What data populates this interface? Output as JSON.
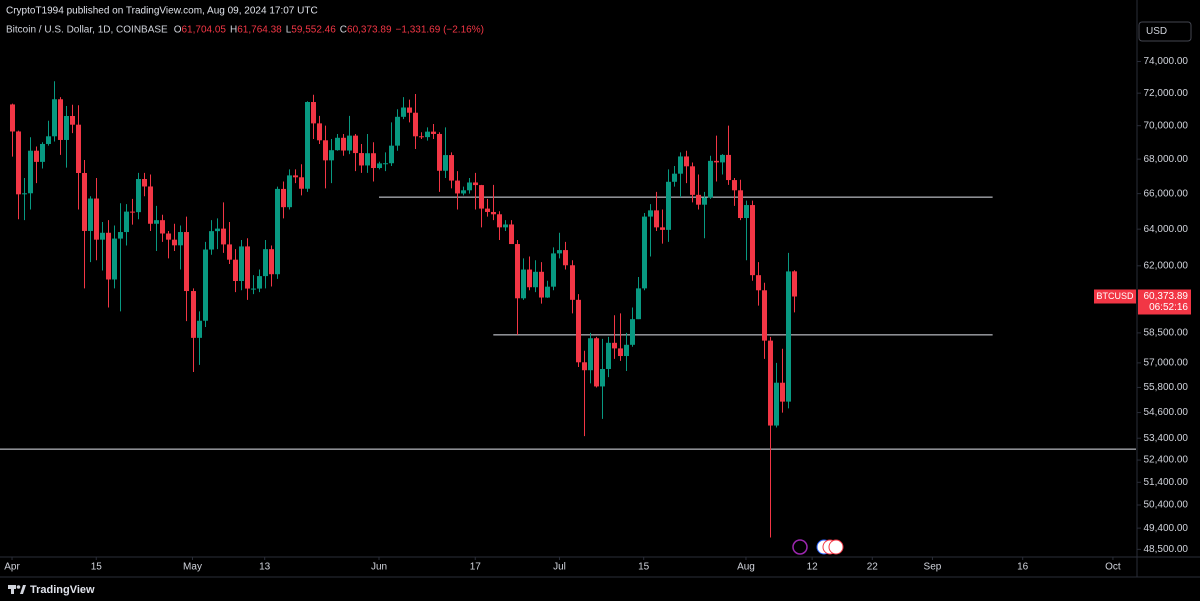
{
  "chart_data": {
    "type": "candlestick",
    "publisher_line": "CryptoT1994 published on TradingView.com, Aug 09, 2024 17:07 UTC",
    "symbol": "Bitcoin / U.S. Dollar, 1D, COINBASE",
    "ohlc_header": [
      {
        "key": "O",
        "label": "61,704.05"
      },
      {
        "key": "H",
        "label": "61,764.38"
      },
      {
        "key": "L",
        "label": "59,552.46"
      },
      {
        "key": "C",
        "label": "60,373.89"
      }
    ],
    "change_label": "−1,331.69 (−2.16%)",
    "currency": "USD",
    "price_tag": {
      "ticker": "BTCUSD",
      "price": "60,373.89",
      "countdown": "06:52:16"
    },
    "brand": "TradingView",
    "up_color": "#089981",
    "down_color": "#f23645",
    "log_scale": true,
    "xlim": [
      "2024-03-30",
      "2024-10-05"
    ],
    "ylim": [
      48180,
      78050
    ],
    "xticks": [
      {
        "value": "2024-04-01",
        "label": "Apr"
      },
      {
        "value": "2024-04-15",
        "label": "15"
      },
      {
        "value": "2024-05-01",
        "label": "May"
      },
      {
        "value": "2024-05-13",
        "label": "13"
      },
      {
        "value": "2024-06-01",
        "label": "Jun"
      },
      {
        "value": "2024-06-17",
        "label": "17"
      },
      {
        "value": "2024-07-01",
        "label": "Jul"
      },
      {
        "value": "2024-07-15",
        "label": "15"
      },
      {
        "value": "2024-08-01",
        "label": "Aug"
      },
      {
        "value": "2024-08-12",
        "label": "12"
      },
      {
        "value": "2024-08-22",
        "label": "22"
      },
      {
        "value": "2024-09-01",
        "label": "Sep"
      },
      {
        "value": "2024-09-16",
        "label": "16"
      },
      {
        "value": "2024-10-01",
        "label": "Oct"
      }
    ],
    "yticks": [
      {
        "value": 74000,
        "label": "74,000.00"
      },
      {
        "value": 72000,
        "label": "72,000.00"
      },
      {
        "value": 70000,
        "label": "70,000.00"
      },
      {
        "value": 68000,
        "label": "68,000.00"
      },
      {
        "value": 66000,
        "label": "66,000.00"
      },
      {
        "value": 64000,
        "label": "64,000.00"
      },
      {
        "value": 62000,
        "label": "62,000.00"
      },
      {
        "value": 58500,
        "label": "58,500.00"
      },
      {
        "value": 57000,
        "label": "57,000.00"
      },
      {
        "value": 55800,
        "label": "55,800.00"
      },
      {
        "value": 54600,
        "label": "54,600.00"
      },
      {
        "value": 53400,
        "label": "53,400.00"
      },
      {
        "value": 52400,
        "label": "52,400.00"
      },
      {
        "value": 51400,
        "label": "51,400.00"
      },
      {
        "value": 50400,
        "label": "50,400.00"
      },
      {
        "value": 49400,
        "label": "49,400.00"
      },
      {
        "value": 48500,
        "label": "48,500.00"
      }
    ],
    "hlines": [
      {
        "value": 65800,
        "x": [
          "2024-06-01",
          "2024-09-11"
        ]
      },
      {
        "value": 58400,
        "x": [
          "2024-06-20",
          "2024-09-11"
        ]
      },
      {
        "value": 52900,
        "x": [
          "2024-03-30",
          "2024-10-05"
        ]
      }
    ],
    "x": [
      "2024-04-01",
      "2024-04-02",
      "2024-04-03",
      "2024-04-04",
      "2024-04-05",
      "2024-04-06",
      "2024-04-07",
      "2024-04-08",
      "2024-04-09",
      "2024-04-10",
      "2024-04-11",
      "2024-04-12",
      "2024-04-13",
      "2024-04-14",
      "2024-04-15",
      "2024-04-16",
      "2024-04-17",
      "2024-04-18",
      "2024-04-19",
      "2024-04-20",
      "2024-04-21",
      "2024-04-22",
      "2024-04-23",
      "2024-04-24",
      "2024-04-25",
      "2024-04-26",
      "2024-04-27",
      "2024-04-28",
      "2024-04-29",
      "2024-04-30",
      "2024-05-01",
      "2024-05-02",
      "2024-05-03",
      "2024-05-04",
      "2024-05-05",
      "2024-05-06",
      "2024-05-07",
      "2024-05-08",
      "2024-05-09",
      "2024-05-10",
      "2024-05-11",
      "2024-05-12",
      "2024-05-13",
      "2024-05-14",
      "2024-05-15",
      "2024-05-16",
      "2024-05-17",
      "2024-05-18",
      "2024-05-19",
      "2024-05-20",
      "2024-05-21",
      "2024-05-22",
      "2024-05-23",
      "2024-05-24",
      "2024-05-25",
      "2024-05-26",
      "2024-05-27",
      "2024-05-28",
      "2024-05-29",
      "2024-05-30",
      "2024-05-31",
      "2024-06-01",
      "2024-06-02",
      "2024-06-03",
      "2024-06-04",
      "2024-06-05",
      "2024-06-06",
      "2024-06-07",
      "2024-06-08",
      "2024-06-09",
      "2024-06-10",
      "2024-06-11",
      "2024-06-12",
      "2024-06-13",
      "2024-06-14",
      "2024-06-15",
      "2024-06-16",
      "2024-06-17",
      "2024-06-18",
      "2024-06-19",
      "2024-06-20",
      "2024-06-21",
      "2024-06-22",
      "2024-06-23",
      "2024-06-24",
      "2024-06-25",
      "2024-06-26",
      "2024-06-27",
      "2024-06-28",
      "2024-06-29",
      "2024-06-30",
      "2024-07-01",
      "2024-07-02",
      "2024-07-03",
      "2024-07-04",
      "2024-07-05",
      "2024-07-06",
      "2024-07-07",
      "2024-07-08",
      "2024-07-09",
      "2024-07-10",
      "2024-07-11",
      "2024-07-12",
      "2024-07-13",
      "2024-07-14",
      "2024-07-15",
      "2024-07-16",
      "2024-07-17",
      "2024-07-18",
      "2024-07-19",
      "2024-07-20",
      "2024-07-21",
      "2024-07-22",
      "2024-07-23",
      "2024-07-24",
      "2024-07-25",
      "2024-07-26",
      "2024-07-27",
      "2024-07-28",
      "2024-07-29",
      "2024-07-30",
      "2024-07-31",
      "2024-08-01",
      "2024-08-02",
      "2024-08-03",
      "2024-08-04",
      "2024-08-05",
      "2024-08-06",
      "2024-08-07",
      "2024-08-08",
      "2024-08-09"
    ],
    "open": [
      71300,
      69650,
      65960,
      66020,
      68500,
      67840,
      68900,
      69360,
      71620,
      69140,
      70590,
      70060,
      67190,
      63900,
      65720,
      63420,
      63800,
      61270,
      63480,
      63840,
      64980,
      64950,
      66840,
      66410,
      64300,
      64500,
      63760,
      63420,
      63110,
      63840,
      60660,
      58250,
      59120,
      62880,
      63890,
      64030,
      63160,
      62330,
      61190,
      63050,
      60790,
      60790,
      61450,
      62900,
      61550,
      66270,
      65230,
      67050,
      66940,
      66280,
      71450,
      70140,
      69120,
      67930,
      68530,
      69270,
      68510,
      69400,
      68360,
      67630,
      68350,
      67480,
      67750,
      67760,
      68800,
      70540,
      71110,
      70790,
      69360,
      69310,
      69640,
      69500,
      67320,
      68240,
      66750,
      66010,
      66190,
      66640,
      66490,
      65150,
      64960,
      64830,
      64100,
      64260,
      63180,
      60280,
      61800,
      60860,
      61680,
      60320,
      60890,
      62670,
      62850,
      62030,
      60200,
      57030,
      56640,
      58230,
      55850,
      56700,
      58000,
      57720,
      57340,
      57900,
      59200,
      60800,
      64700,
      65050,
      64100,
      63960,
      66680,
      67150,
      68160,
      67580,
      65930,
      65370,
      65780,
      67900,
      67810,
      68250,
      66780,
      66190,
      64620,
      65350,
      61500,
      60700,
      58110,
      53990,
      56030,
      55120,
      61704.05
    ],
    "high": [
      71350,
      69700,
      66900,
      69300,
      68750,
      69000,
      70300,
      72750,
      71750,
      71200,
      71280,
      71250,
      67950,
      65850,
      66900,
      64400,
      64500,
      64200,
      65450,
      65400,
      65700,
      67200,
      67200,
      67100,
      65300,
      64800,
      63900,
      64300,
      64200,
      64700,
      60800,
      59600,
      63300,
      64500,
      64600,
      65500,
      64400,
      62900,
      63400,
      63500,
      61500,
      61800,
      63400,
      63100,
      66400,
      66700,
      67400,
      67400,
      67700,
      71500,
      71900,
      70600,
      70000,
      69200,
      69500,
      69500,
      70600,
      69500,
      68900,
      69500,
      69000,
      67850,
      68400,
      70200,
      71000,
      71750,
      71600,
      71950,
      69600,
      69900,
      70100,
      69600,
      69900,
      68400,
      67300,
      66400,
      66900,
      67200,
      66500,
      65700,
      66500,
      65000,
      64500,
      64500,
      63400,
      62400,
      62500,
      62300,
      62200,
      61200,
      63000,
      63800,
      63300,
      62300,
      60500,
      57600,
      58500,
      58300,
      58200,
      58300,
      59400,
      59500,
      58500,
      59800,
      61400,
      64900,
      65400,
      66100,
      65100,
      67400,
      67600,
      68400,
      68500,
      67800,
      67100,
      66100,
      68200,
      69400,
      68300,
      70000,
      66900,
      66800,
      65600,
      65600,
      62200,
      61100,
      58300,
      57000,
      57700,
      62700,
      61764.38
    ],
    "low": [
      68150,
      64550,
      64500,
      65100,
      66600,
      67450,
      68800,
      69050,
      68250,
      67500,
      69550,
      65100,
      60800,
      62200,
      62300,
      61750,
      59800,
      60800,
      59600,
      63100,
      64250,
      64550,
      65850,
      63900,
      62800,
      63300,
      62400,
      62800,
      61800,
      59100,
      56550,
      56900,
      58800,
      62600,
      62900,
      62700,
      62100,
      60600,
      60700,
      60200,
      60500,
      60600,
      60800,
      60900,
      61300,
      64600,
      65100,
      66600,
      65900,
      66100,
      69200,
      68900,
      66300,
      66600,
      68500,
      68200,
      68300,
      67300,
      67200,
      67200,
      66700,
      67400,
      67300,
      67600,
      68500,
      70400,
      70200,
      68600,
      69200,
      69100,
      69200,
      66100,
      66900,
      66300,
      65100,
      65900,
      66000,
      65100,
      64100,
      64700,
      64500,
      63400,
      63900,
      63200,
      58400,
      60200,
      60700,
      60600,
      60000,
      60300,
      60700,
      62400,
      61800,
      59500,
      56800,
      53500,
      56000,
      55800,
      54300,
      56300,
      57200,
      57100,
      56600,
      57800,
      59200,
      60700,
      62500,
      63900,
      63200,
      63300,
      66400,
      65800,
      66600,
      65500,
      65100,
      63500,
      65700,
      66700,
      67100,
      66500,
      65300,
      64500,
      62300,
      61200,
      59900,
      57200,
      49000,
      53900,
      54600,
      54800,
      59552.46
    ],
    "close": [
      69650,
      65960,
      66020,
      68500,
      67840,
      68900,
      69360,
      71620,
      69140,
      70590,
      70060,
      67190,
      63900,
      65720,
      63420,
      63800,
      61270,
      63480,
      63840,
      64980,
      64950,
      66840,
      66410,
      64300,
      64500,
      63760,
      63420,
      63110,
      63840,
      60660,
      58250,
      59120,
      62880,
      63890,
      64030,
      63160,
      62330,
      61190,
      63050,
      60790,
      60790,
      61450,
      62900,
      61550,
      66270,
      65230,
      67050,
      66940,
      66280,
      71450,
      70140,
      69120,
      67930,
      68530,
      69270,
      68510,
      69400,
      68360,
      67630,
      68350,
      67480,
      67750,
      67760,
      68800,
      70540,
      71110,
      70790,
      69360,
      69310,
      69640,
      69500,
      67320,
      68240,
      66750,
      66010,
      66190,
      66640,
      66490,
      65150,
      64960,
      64830,
      64100,
      64260,
      63180,
      60280,
      61800,
      60860,
      61680,
      60320,
      60890,
      62670,
      62850,
      62030,
      60200,
      57030,
      56640,
      58230,
      55850,
      56700,
      58000,
      57720,
      57340,
      57900,
      59200,
      60800,
      64700,
      65050,
      64100,
      63960,
      66680,
      67150,
      68160,
      67580,
      65930,
      65370,
      65780,
      67900,
      67810,
      68250,
      66780,
      66190,
      64620,
      65350,
      61500,
      60700,
      58110,
      53990,
      56030,
      55120,
      61700,
      60373.89
    ]
  }
}
